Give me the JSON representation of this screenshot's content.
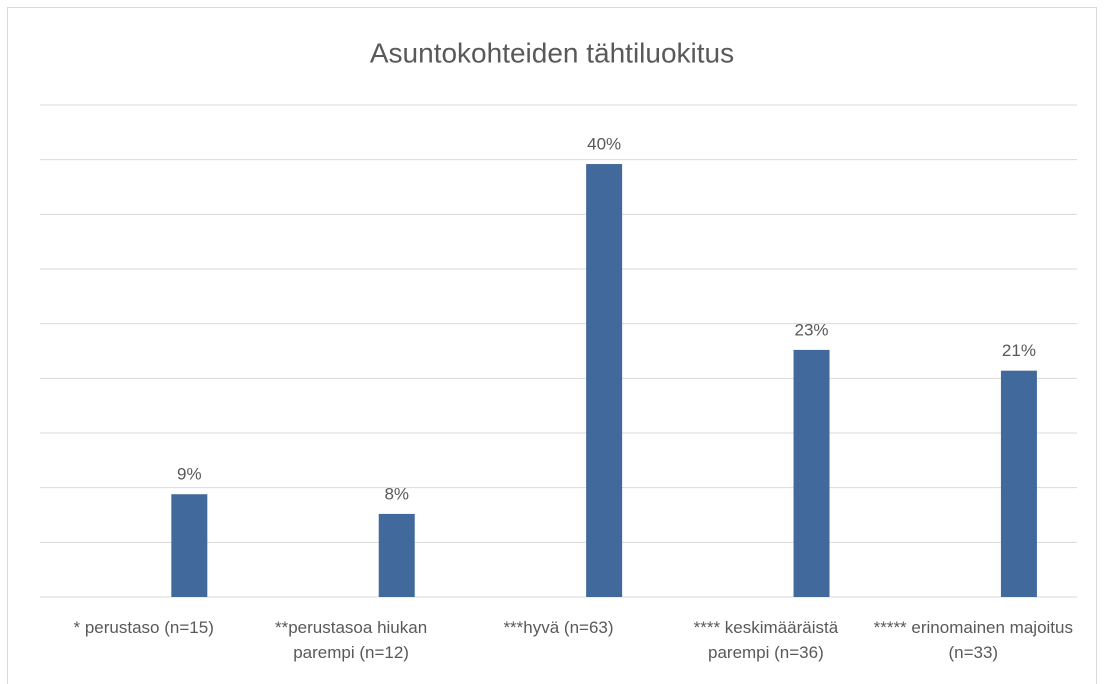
{
  "chart_data": {
    "type": "bar",
    "title": "Asuntokohteiden tähtiluokitus",
    "categories": [
      "* perustaso (n=15)",
      "**perustasoa hiukan parempi (n=12)",
      "***hyvä (n=63)",
      "**** keskimääräistä parempi (n=36)",
      "***** erinomainen majoitus (n=33)"
    ],
    "values": [
      9.4,
      7.6,
      39.6,
      22.6,
      20.7
    ],
    "value_labels": [
      "9%",
      "8%",
      "40%",
      "23%",
      "21%"
    ],
    "color": "#41699c",
    "ylim": [
      0,
      45
    ],
    "yticks": [
      0,
      5,
      10,
      15,
      20,
      25,
      30,
      35,
      40,
      45
    ],
    "grid": true
  }
}
